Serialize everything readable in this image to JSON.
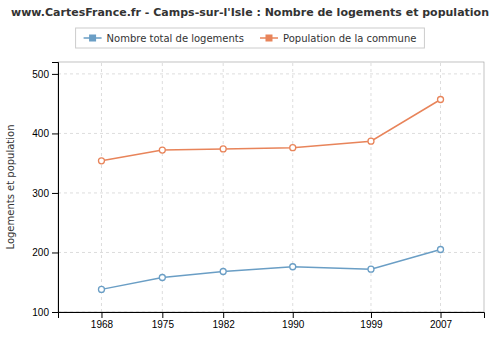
{
  "chart_data": {
    "type": "line",
    "title": "www.CartesFrance.fr - Camps-sur-l'Isle : Nombre de logements et population",
    "y_label": "Logements et population",
    "x": [
      1968,
      1975,
      1982,
      1990,
      1999,
      2007
    ],
    "series": [
      {
        "name": "Nombre total de logements",
        "color": "#6a9ec5",
        "marker": "circle",
        "values": [
          138,
          158,
          168,
          176,
          172,
          205
        ]
      },
      {
        "name": "Population de la commune",
        "color": "#e8845a",
        "marker": "circle",
        "values": [
          354,
          372,
          374,
          376,
          387,
          457
        ]
      }
    ],
    "xlim": [
      1963,
      2012
    ],
    "xticks": [
      1968,
      1975,
      1982,
      1990,
      1999,
      2007
    ],
    "ylim": [
      100,
      520
    ],
    "yticks": [
      100,
      200,
      300,
      400,
      500
    ],
    "grid": true,
    "legend": "top"
  }
}
